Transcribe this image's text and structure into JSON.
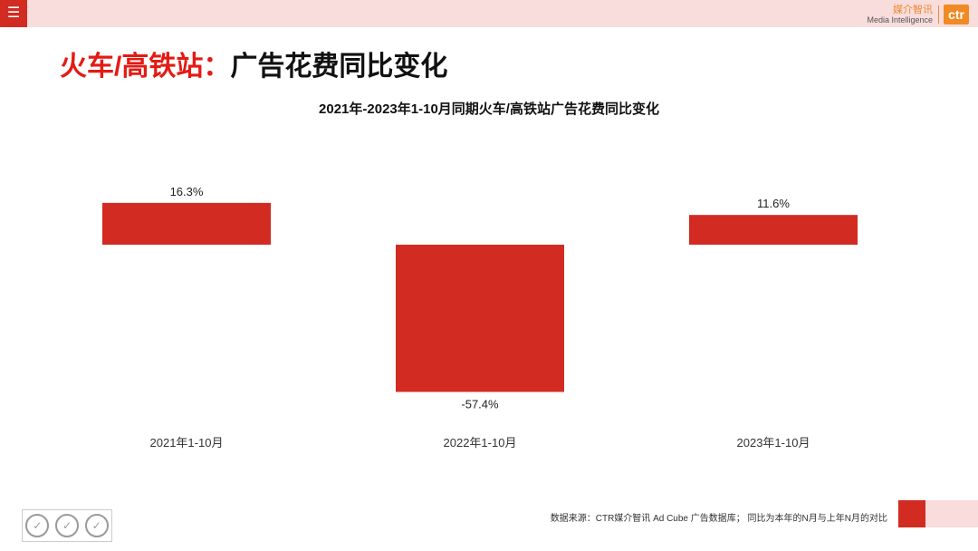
{
  "header": {
    "menu_icon": "menu-icon",
    "brand_cn": "媒介智讯",
    "brand_en": "Media Intelligence",
    "brand_logo": "ctr"
  },
  "page": {
    "title_red": "火车/高铁站：",
    "title_black": "广告花费同比变化"
  },
  "chart_data": {
    "type": "bar",
    "title": "2021年-2023年1-10月同期火车/高铁站广告花费同比变化",
    "categories": [
      "2021年1-10月",
      "2022年1-10月",
      "2023年1-10月"
    ],
    "values": [
      16.3,
      -57.4,
      11.6
    ],
    "value_labels": [
      "16.3%",
      "-57.4%",
      "11.6%"
    ],
    "bar_color": "#d22b22",
    "grid": false,
    "legend": "none"
  },
  "footer": {
    "source": "数据来源：CTR媒介智讯 Ad Cube 广告数据库； 同比为本年的N月与上年N月的对比",
    "cert_icon": "certification-seal-icon"
  },
  "colors": {
    "accent_red": "#d22b22",
    "title_red": "#e31b14",
    "pink": "#f9dcdc",
    "orange": "#f08a24"
  }
}
